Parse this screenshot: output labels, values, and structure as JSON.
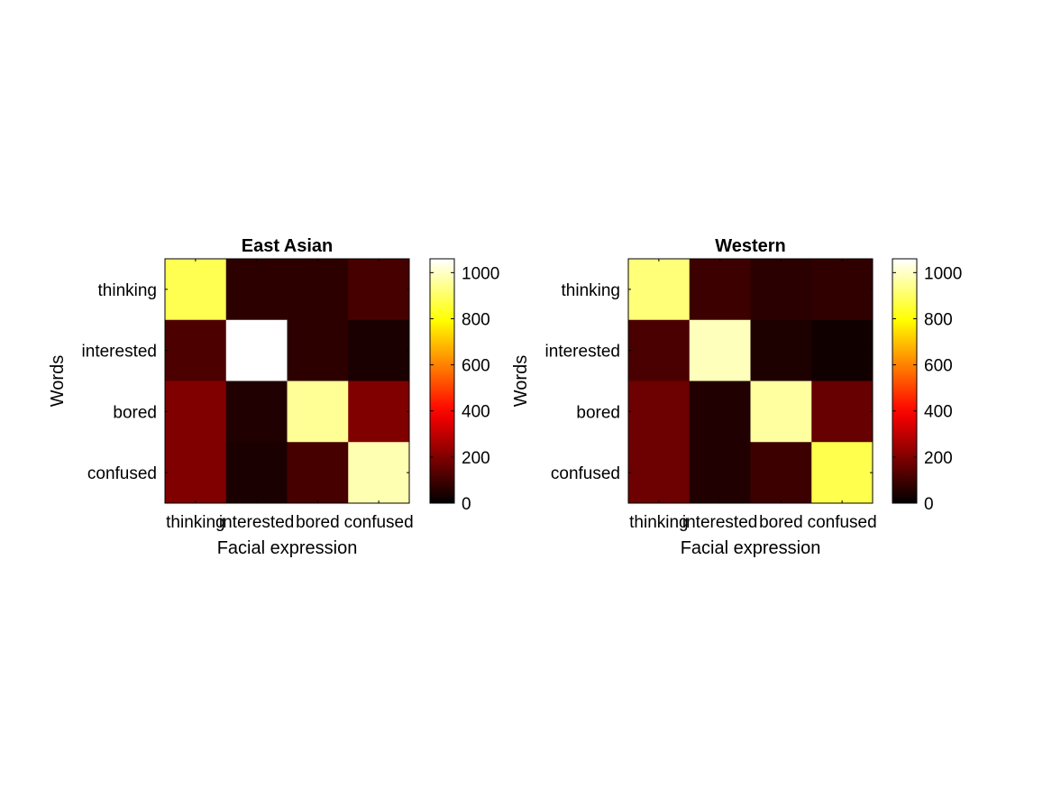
{
  "chart_data": [
    {
      "type": "heatmap",
      "title": "East Asian",
      "xlabel": "Facial expression",
      "ylabel": "Words",
      "x_categories": [
        "thinking",
        "interested",
        "bored",
        "confused"
      ],
      "y_categories": [
        "thinking",
        "interested",
        "bored",
        "confused"
      ],
      "values": [
        [
          880,
          70,
          70,
          110
        ],
        [
          120,
          1060,
          70,
          40
        ],
        [
          200,
          50,
          950,
          200
        ],
        [
          200,
          40,
          110,
          980
        ]
      ],
      "colorbar": {
        "min": 0,
        "max": 1060,
        "ticks": [
          0,
          200,
          400,
          600,
          800,
          1000
        ],
        "colormap": "hot"
      }
    },
    {
      "type": "heatmap",
      "title": "Western",
      "xlabel": "Facial expression",
      "ylabel": "Words",
      "x_categories": [
        "thinking",
        "interested",
        "bored",
        "confused"
      ],
      "y_categories": [
        "thinking",
        "interested",
        "bored",
        "confused"
      ],
      "values": [
        [
          920,
          95,
          65,
          75
        ],
        [
          115,
          990,
          45,
          25
        ],
        [
          170,
          50,
          960,
          160
        ],
        [
          170,
          50,
          95,
          875
        ]
      ],
      "colorbar": {
        "min": 0,
        "max": 1060,
        "ticks": [
          0,
          200,
          400,
          600,
          800,
          1000
        ],
        "colormap": "hot"
      }
    }
  ]
}
